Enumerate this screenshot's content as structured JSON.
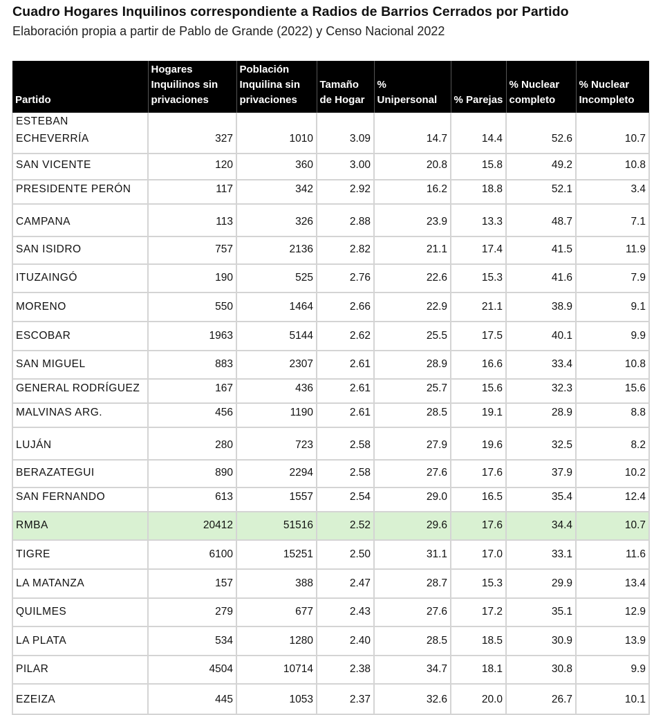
{
  "title": "Cuadro Hogares Inquilinos correspondiente a Radios de Barrios Cerrados por Partido",
  "subtitle": "Elaboración propia a partir de Pablo de Grande (2022) y Censo Nacional 2022",
  "highlight_color": "#d9f1d2",
  "highlight_row": "RMBA",
  "columns": [
    "Partido",
    "Hogares Inquilinos sin privaciones",
    "Población Inquilina sin privaciones",
    "Tamaño de Hogar",
    "% Unipersonal",
    "% Parejas",
    "% Nuclear completo",
    "% Nuclear Incompleto"
  ],
  "rows": [
    [
      "ESTEBAN ECHEVERRÍA",
      "327",
      "1010",
      "3.09",
      "14.7",
      "14.4",
      "52.6",
      "10.7"
    ],
    [
      "SAN VICENTE",
      "120",
      "360",
      "3.00",
      "20.8",
      "15.8",
      "49.2",
      "10.8"
    ],
    [
      "PRESIDENTE PERÓN",
      "117",
      "342",
      "2.92",
      "16.2",
      "18.8",
      "52.1",
      "3.4"
    ],
    [
      "CAMPANA",
      "113",
      "326",
      "2.88",
      "23.9",
      "13.3",
      "48.7",
      "7.1"
    ],
    [
      "SAN ISIDRO",
      "757",
      "2136",
      "2.82",
      "21.1",
      "17.4",
      "41.5",
      "11.9"
    ],
    [
      "ITUZAINGÓ",
      "190",
      "525",
      "2.76",
      "22.6",
      "15.3",
      "41.6",
      "7.9"
    ],
    [
      "MORENO",
      "550",
      "1464",
      "2.66",
      "22.9",
      "21.1",
      "38.9",
      "9.1"
    ],
    [
      "ESCOBAR",
      "1963",
      "5144",
      "2.62",
      "25.5",
      "17.5",
      "40.1",
      "9.9"
    ],
    [
      "SAN MIGUEL",
      "883",
      "2307",
      "2.61",
      "28.9",
      "16.6",
      "33.4",
      "10.8"
    ],
    [
      "GENERAL RODRÍGUEZ",
      "167",
      "436",
      "2.61",
      "25.7",
      "15.6",
      "32.3",
      "15.6"
    ],
    [
      "MALVINAS ARG.",
      "456",
      "1190",
      "2.61",
      "28.5",
      "19.1",
      "28.9",
      "8.8"
    ],
    [
      "LUJÁN",
      "280",
      "723",
      "2.58",
      "27.9",
      "19.6",
      "32.5",
      "8.2"
    ],
    [
      "BERAZATEGUI",
      "890",
      "2294",
      "2.58",
      "27.6",
      "17.6",
      "37.9",
      "10.2"
    ],
    [
      "SAN FERNANDO",
      "613",
      "1557",
      "2.54",
      "29.0",
      "16.5",
      "35.4",
      "12.4"
    ],
    [
      "RMBA",
      "20412",
      "51516",
      "2.52",
      "29.6",
      "17.6",
      "34.4",
      "10.7"
    ],
    [
      "TIGRE",
      "6100",
      "15251",
      "2.50",
      "31.1",
      "17.0",
      "33.1",
      "11.6"
    ],
    [
      "LA MATANZA",
      "157",
      "388",
      "2.47",
      "28.7",
      "15.3",
      "29.9",
      "13.4"
    ],
    [
      "QUILMES",
      "279",
      "677",
      "2.43",
      "27.6",
      "17.2",
      "35.1",
      "12.9"
    ],
    [
      "LA PLATA",
      "534",
      "1280",
      "2.40",
      "28.5",
      "18.5",
      "30.9",
      "13.9"
    ],
    [
      "PILAR",
      "4504",
      "10714",
      "2.38",
      "34.7",
      "18.1",
      "30.8",
      "9.9"
    ],
    [
      "EZEIZA",
      "445",
      "1053",
      "2.37",
      "32.6",
      "20.0",
      "26.7",
      "10.1"
    ]
  ]
}
